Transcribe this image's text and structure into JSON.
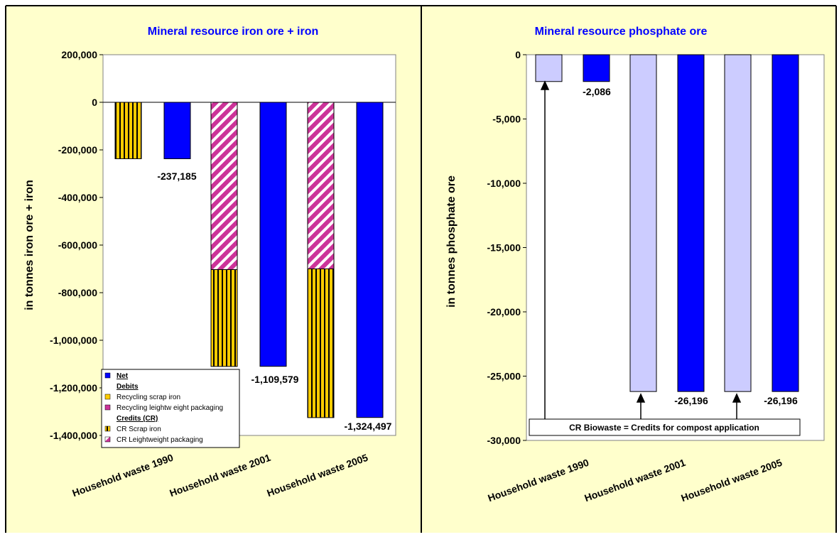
{
  "colors": {
    "page_bg": "#FFFFCC",
    "plot_bg": "#FFFFFF",
    "net": "#0000FF",
    "credit_light": "#CCCCFF",
    "title": "#0000FF",
    "scrap_iron": "#FFCC00",
    "packaging": "#CC3399"
  },
  "chart_data": [
    {
      "type": "bar",
      "title": "Mineral resource iron ore + iron",
      "ylabel": "in tonnes iron ore + iron",
      "ylim": [
        -1400000,
        200000
      ],
      "yticks": [
        200000,
        0,
        -200000,
        -400000,
        -600000,
        -800000,
        -1000000,
        -1200000,
        -1400000
      ],
      "ytick_labels": [
        "200,000",
        "0",
        "-200,000",
        "-400,000",
        "-600,000",
        "-800,000",
        "-1,000,000",
        "-1,200,000",
        "-1,400,000"
      ],
      "categories": [
        "Household waste 1990",
        "Household waste 2001",
        "Household waste 2005"
      ],
      "series": [
        {
          "name": "Net",
          "values": [
            -237185,
            -1109579,
            -1324497
          ]
        },
        {
          "name": "Recycling scrap iron",
          "values": [
            0,
            0,
            0
          ]
        },
        {
          "name": "Recycling leightw eight packaging",
          "values": [
            0,
            0,
            0
          ]
        },
        {
          "name": "CR Scrap iron",
          "values": [
            -237185,
            -407000,
            -625000
          ]
        },
        {
          "name": "CR Leightweight packaging",
          "values": [
            0,
            -703000,
            -700000
          ]
        }
      ],
      "data_labels": [
        "-237,185",
        "-1,109,579",
        "-1,324,497"
      ],
      "legend": {
        "placement": "bottom-left",
        "headers": {
          "debits": "Debits",
          "credits": "Credits (CR)"
        }
      }
    },
    {
      "type": "bar",
      "title": "Mineral resource phosphate ore",
      "ylabel": "in tonnes phosphate ore",
      "ylim": [
        -30000,
        0
      ],
      "yticks": [
        0,
        -5000,
        -10000,
        -15000,
        -20000,
        -25000,
        -30000
      ],
      "ytick_labels": [
        "0",
        "-5,000",
        "-10,000",
        "-15,000",
        "-20,000",
        "-25,000",
        "-30,000"
      ],
      "categories": [
        "Household waste 1990",
        "Household waste 2001",
        "Household waste 2005"
      ],
      "series": [
        {
          "name": "CR Biowaste",
          "values": [
            -2086,
            -26196,
            -26196
          ]
        },
        {
          "name": "Net",
          "values": [
            -2086,
            -26196,
            -26196
          ]
        }
      ],
      "data_labels": [
        "-2,086",
        "-26,196",
        "-26,196"
      ],
      "annotation": "CR Biowaste = Credits for compost application"
    }
  ]
}
